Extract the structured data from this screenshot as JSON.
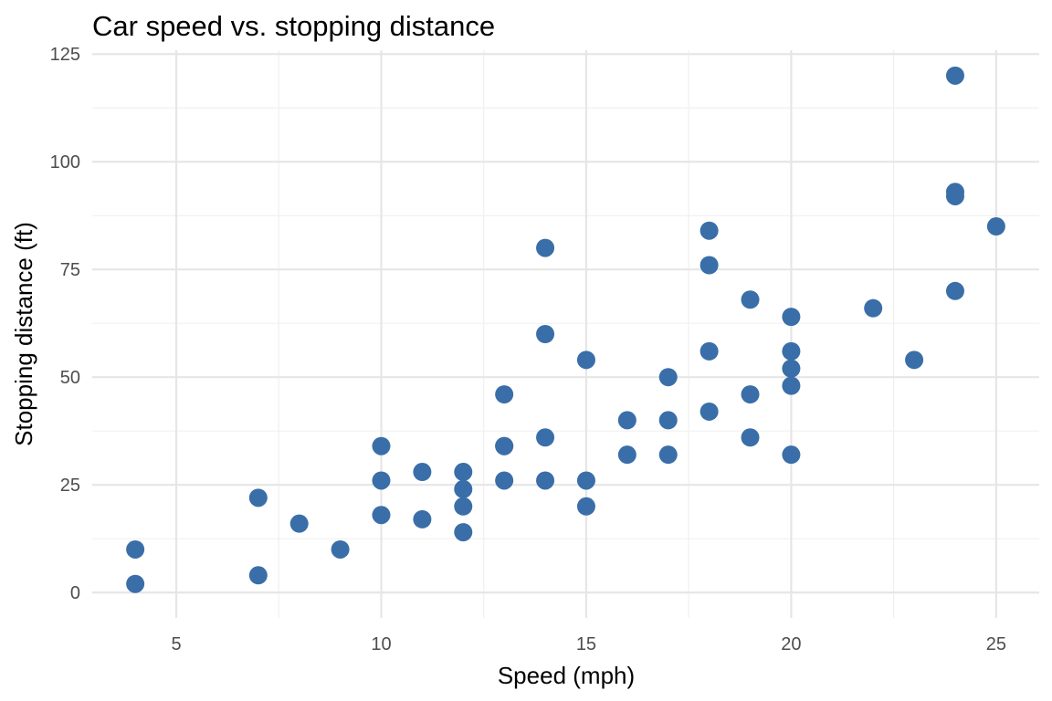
{
  "chart_data": {
    "type": "scatter",
    "title": "Car speed vs. stopping distance",
    "xlabel": "Speed (mph)",
    "ylabel": "Stopping distance (ft)",
    "xlim": [
      2.95,
      26.05
    ],
    "ylim": [
      -5.9,
      125.9
    ],
    "x_ticks": [
      5,
      10,
      15,
      20,
      25
    ],
    "x_tick_labels": [
      "5",
      "10",
      "15",
      "20",
      "25"
    ],
    "y_ticks": [
      0,
      25,
      50,
      75,
      100,
      125
    ],
    "y_tick_labels": [
      "0",
      "25",
      "50",
      "75",
      "100",
      "125"
    ],
    "grid": true,
    "point_color": "#3A6EA8",
    "points": [
      {
        "x": 4,
        "y": 2
      },
      {
        "x": 4,
        "y": 10
      },
      {
        "x": 7,
        "y": 4
      },
      {
        "x": 7,
        "y": 22
      },
      {
        "x": 8,
        "y": 16
      },
      {
        "x": 9,
        "y": 10
      },
      {
        "x": 10,
        "y": 18
      },
      {
        "x": 10,
        "y": 26
      },
      {
        "x": 10,
        "y": 34
      },
      {
        "x": 11,
        "y": 17
      },
      {
        "x": 11,
        "y": 28
      },
      {
        "x": 12,
        "y": 14
      },
      {
        "x": 12,
        "y": 20
      },
      {
        "x": 12,
        "y": 24
      },
      {
        "x": 12,
        "y": 28
      },
      {
        "x": 13,
        "y": 26
      },
      {
        "x": 13,
        "y": 34
      },
      {
        "x": 13,
        "y": 34
      },
      {
        "x": 13,
        "y": 46
      },
      {
        "x": 14,
        "y": 26
      },
      {
        "x": 14,
        "y": 36
      },
      {
        "x": 14,
        "y": 60
      },
      {
        "x": 14,
        "y": 80
      },
      {
        "x": 15,
        "y": 20
      },
      {
        "x": 15,
        "y": 26
      },
      {
        "x": 15,
        "y": 54
      },
      {
        "x": 16,
        "y": 32
      },
      {
        "x": 16,
        "y": 40
      },
      {
        "x": 17,
        "y": 32
      },
      {
        "x": 17,
        "y": 40
      },
      {
        "x": 17,
        "y": 50
      },
      {
        "x": 18,
        "y": 42
      },
      {
        "x": 18,
        "y": 56
      },
      {
        "x": 18,
        "y": 76
      },
      {
        "x": 18,
        "y": 84
      },
      {
        "x": 19,
        "y": 36
      },
      {
        "x": 19,
        "y": 46
      },
      {
        "x": 19,
        "y": 68
      },
      {
        "x": 20,
        "y": 32
      },
      {
        "x": 20,
        "y": 48
      },
      {
        "x": 20,
        "y": 52
      },
      {
        "x": 20,
        "y": 56
      },
      {
        "x": 20,
        "y": 64
      },
      {
        "x": 22,
        "y": 66
      },
      {
        "x": 23,
        "y": 54
      },
      {
        "x": 24,
        "y": 70
      },
      {
        "x": 24,
        "y": 92
      },
      {
        "x": 24,
        "y": 93
      },
      {
        "x": 24,
        "y": 120
      },
      {
        "x": 25,
        "y": 85
      }
    ]
  }
}
